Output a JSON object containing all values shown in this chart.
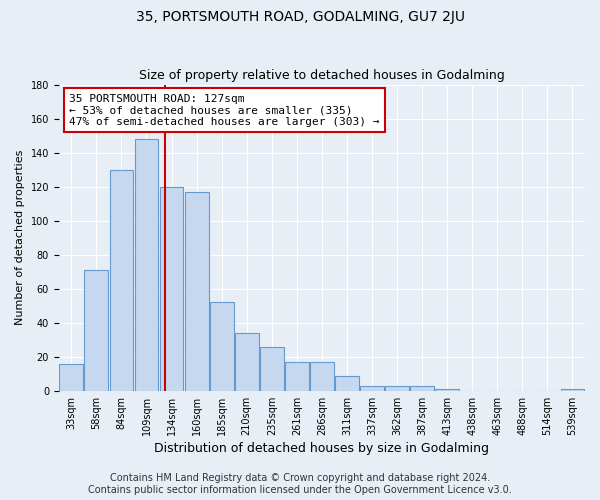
{
  "title": "35, PORTSMOUTH ROAD, GODALMING, GU7 2JU",
  "subtitle": "Size of property relative to detached houses in Godalming",
  "xlabel": "Distribution of detached houses by size in Godalming",
  "ylabel": "Number of detached properties",
  "categories": [
    "33sqm",
    "58sqm",
    "84sqm",
    "109sqm",
    "134sqm",
    "160sqm",
    "185sqm",
    "210sqm",
    "235sqm",
    "261sqm",
    "286sqm",
    "311sqm",
    "337sqm",
    "362sqm",
    "387sqm",
    "413sqm",
    "438sqm",
    "463sqm",
    "488sqm",
    "514sqm",
    "539sqm"
  ],
  "values": [
    16,
    71,
    130,
    148,
    120,
    117,
    52,
    34,
    26,
    17,
    17,
    9,
    3,
    3,
    3,
    1,
    0,
    0,
    0,
    0,
    1
  ],
  "bar_color": "#c5d8f0",
  "bar_edge_color": "#6699cc",
  "property_size_idx": 4,
  "annotation_text_line1": "35 PORTSMOUTH ROAD: 127sqm",
  "annotation_text_line2": "← 53% of detached houses are smaller (335)",
  "annotation_text_line3": "47% of semi-detached houses are larger (303) →",
  "annotation_box_color": "white",
  "annotation_box_edge_color": "#cc0000",
  "vline_color": "#cc0000",
  "ylim": [
    0,
    180
  ],
  "yticks": [
    0,
    20,
    40,
    60,
    80,
    100,
    120,
    140,
    160,
    180
  ],
  "footer_line1": "Contains HM Land Registry data © Crown copyright and database right 2024.",
  "footer_line2": "Contains public sector information licensed under the Open Government Licence v3.0.",
  "bg_color": "#e8eef5",
  "grid_color": "#ffffff",
  "title_fontsize": 10,
  "subtitle_fontsize": 9,
  "tick_fontsize": 7,
  "ylabel_fontsize": 8,
  "xlabel_fontsize": 9,
  "footer_fontsize": 7,
  "annotation_fontsize": 8
}
